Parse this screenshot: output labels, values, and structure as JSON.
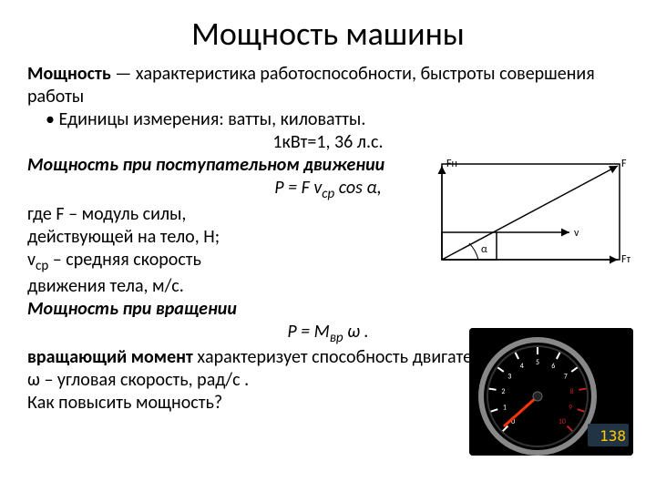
{
  "title": "Мощность машины",
  "def_bold": "Мощность",
  "def_rest": " — характеристика работоспособности, быстроты совершения работы",
  "bullet_units": "Единицы измерения: ватты, киловатты.",
  "conversion": "1кВт=1, 36 л.с.",
  "heading_linear": "Мощность при поступательном движении",
  "formula_linear_p": "Р = F v",
  "formula_linear_sub": "ср",
  "formula_linear_cos": " cos α,",
  "where_f1": "где F – модуль силы,",
  "where_f2": "действующей на тело, Н;",
  "where_v1a": "v",
  "where_v1b": " – средняя скорость",
  "where_v2": "движения тела, м/с.",
  "heading_rot": "Мощность при вращении",
  "formula_rot_p": "Р = M",
  "formula_rot_sub": "вр",
  "formula_rot_w": " ω .",
  "torque_bold": "вращающий момент",
  "torque_rest": " характеризует способность двигателя брать нагрузку",
  "omega_def": "ω – угловая скорость, рад/с .",
  "question": "Как повысить мощность?",
  "diagram": {
    "labels": {
      "Fn": "Fн",
      "F": "F",
      "Ft": "Fт",
      "v": "v",
      "alpha": "α"
    },
    "colors": {
      "stroke": "#000000",
      "bg": "#ffffff"
    }
  },
  "tachometer": {
    "bg": "#000000",
    "dial_color": "#ffffff",
    "redline_color": "#cc2222",
    "needle_color": "#ff3300",
    "rim_color": "#888888",
    "ticks": [
      "0",
      "1",
      "2",
      "3",
      "4",
      "5",
      "6",
      "7",
      "8",
      "9",
      "10"
    ],
    "display_value": "138",
    "display_color": "#ffcc00",
    "display_bg": "#223344"
  }
}
